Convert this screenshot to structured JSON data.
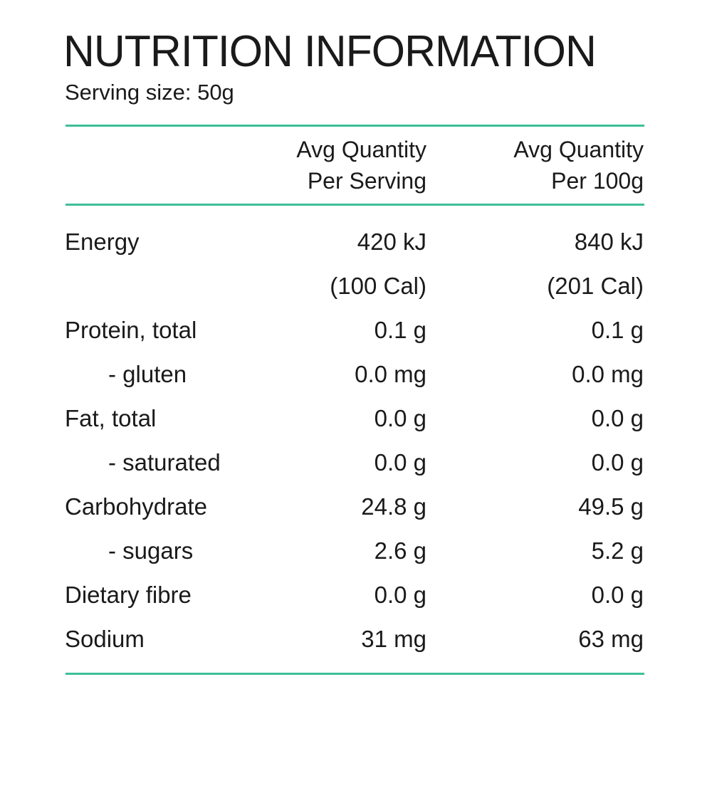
{
  "title": "NUTRITION INFORMATION",
  "serving_size": "Serving size: 50g",
  "accent_color": "#3dbf99",
  "columns": {
    "per_serving": [
      "Avg Quantity",
      "Per Serving"
    ],
    "per_100g": [
      "Avg Quantity",
      "Per 100g"
    ]
  },
  "rows": [
    {
      "label": "Energy",
      "sub": false,
      "per_serving": "420 kJ",
      "per_100g": "840 kJ"
    },
    {
      "label": "",
      "sub": false,
      "per_serving": "(100 Cal)",
      "per_100g": "(201 Cal)"
    },
    {
      "label": "Protein, total",
      "sub": false,
      "per_serving": "0.1 g",
      "per_100g": "0.1 g"
    },
    {
      "label": "- gluten",
      "sub": true,
      "per_serving": "0.0 mg",
      "per_100g": "0.0 mg"
    },
    {
      "label": "Fat, total",
      "sub": false,
      "per_serving": "0.0 g",
      "per_100g": "0.0 g"
    },
    {
      "label": "- saturated",
      "sub": true,
      "per_serving": "0.0 g",
      "per_100g": "0.0 g"
    },
    {
      "label": "Carbohydrate",
      "sub": false,
      "per_serving": "24.8 g",
      "per_100g": "49.5 g"
    },
    {
      "label": "- sugars",
      "sub": true,
      "per_serving": "2.6 g",
      "per_100g": "5.2 g"
    },
    {
      "label": "Dietary fibre",
      "sub": false,
      "per_serving": "0.0 g",
      "per_100g": "0.0 g"
    },
    {
      "label": "Sodium",
      "sub": false,
      "per_serving": "31 mg",
      "per_100g": "63 mg"
    }
  ]
}
